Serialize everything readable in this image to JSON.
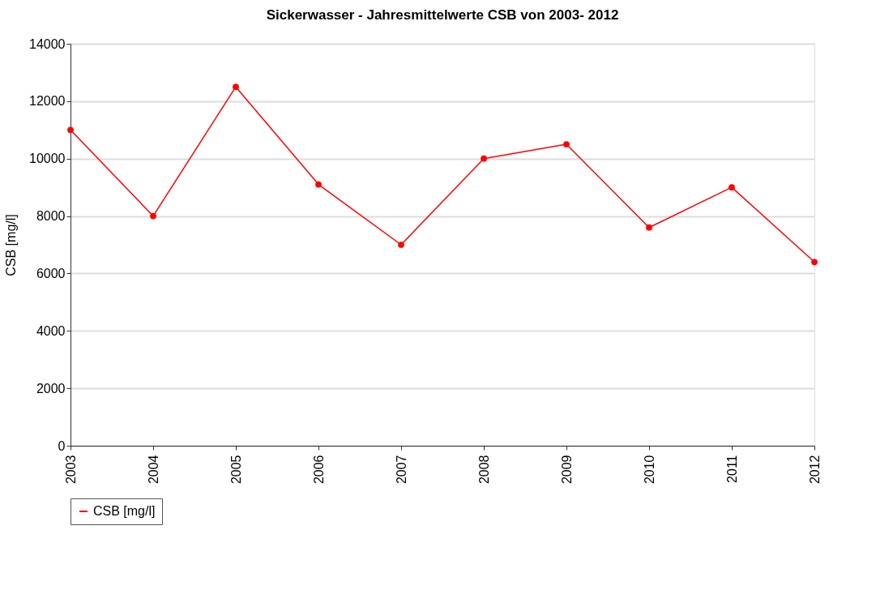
{
  "chart_data": {
    "type": "line",
    "title": "Sickerwasser - Jahresmittelwerte CSB von 2003- 2012",
    "ylabel": "CSB [mg/l]",
    "categories": [
      "2003",
      "2004",
      "2005",
      "2006",
      "2007",
      "2008",
      "2009",
      "2010",
      "2011",
      "2012"
    ],
    "series": [
      {
        "name": "CSB [mg/l]",
        "color": "#ff0000",
        "values": [
          11000,
          8000,
          12500,
          9100,
          7000,
          10000,
          10500,
          7600,
          9000,
          6400
        ]
      }
    ],
    "ylim": [
      0,
      14000
    ],
    "yticks": [
      0,
      2000,
      4000,
      6000,
      8000,
      10000,
      12000,
      14000
    ],
    "grid": "y",
    "legend": "bottom",
    "marker": "circle",
    "line_style": "solid"
  }
}
